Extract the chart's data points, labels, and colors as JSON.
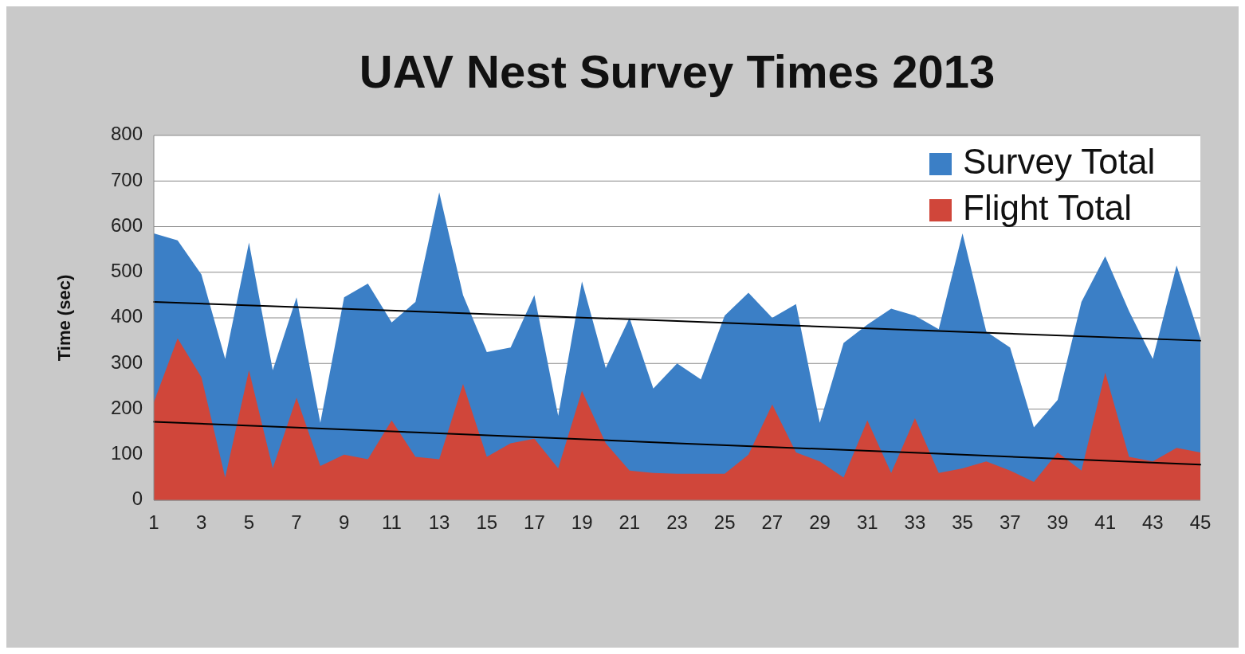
{
  "chart_data": {
    "type": "area",
    "title": "UAV Nest Survey Times 2013",
    "ylabel": "Time (sec)",
    "x": [
      1,
      2,
      3,
      4,
      5,
      6,
      7,
      8,
      9,
      10,
      11,
      12,
      13,
      14,
      15,
      16,
      17,
      18,
      19,
      20,
      21,
      22,
      23,
      24,
      25,
      26,
      27,
      28,
      29,
      30,
      31,
      32,
      33,
      34,
      35,
      36,
      37,
      38,
      39,
      40,
      41,
      42,
      43,
      44,
      45
    ],
    "xlim": [
      1,
      45
    ],
    "xticks": [
      1,
      3,
      5,
      7,
      9,
      11,
      13,
      15,
      17,
      19,
      21,
      23,
      25,
      27,
      29,
      31,
      33,
      35,
      37,
      39,
      41,
      43,
      45
    ],
    "ylim": [
      0,
      800
    ],
    "yticks": [
      0,
      100,
      200,
      300,
      400,
      500,
      600,
      700,
      800
    ],
    "grid": "y",
    "legend": "top right",
    "series": [
      {
        "name": "Survey Total",
        "color": "#3b7fc6",
        "values": [
          585,
          570,
          495,
          310,
          565,
          285,
          445,
          170,
          445,
          475,
          390,
          435,
          675,
          450,
          325,
          335,
          450,
          185,
          480,
          290,
          400,
          245,
          300,
          265,
          405,
          455,
          400,
          430,
          170,
          345,
          385,
          420,
          405,
          375,
          585,
          370,
          335,
          160,
          220,
          435,
          535,
          415,
          310,
          515,
          355
        ]
      },
      {
        "name": "Flight Total",
        "color": "#d0463a",
        "values": [
          215,
          355,
          270,
          50,
          285,
          70,
          225,
          75,
          100,
          90,
          175,
          95,
          90,
          255,
          95,
          125,
          135,
          70,
          240,
          125,
          65,
          60,
          58,
          58,
          58,
          100,
          210,
          105,
          85,
          50,
          175,
          60,
          180,
          60,
          70,
          85,
          65,
          40,
          105,
          65,
          280,
          95,
          85,
          115,
          105
        ]
      },
      {
        "type": "line",
        "color": "#000000",
        "x": [
          1,
          12,
          23,
          34,
          45
        ],
        "values": [
          435,
          414,
          393,
          371,
          350
        ]
      },
      {
        "type": "line",
        "color": "#000000",
        "x": [
          1,
          12,
          23,
          34,
          45
        ],
        "values": [
          172,
          149,
          125,
          102,
          78
        ]
      }
    ]
  }
}
